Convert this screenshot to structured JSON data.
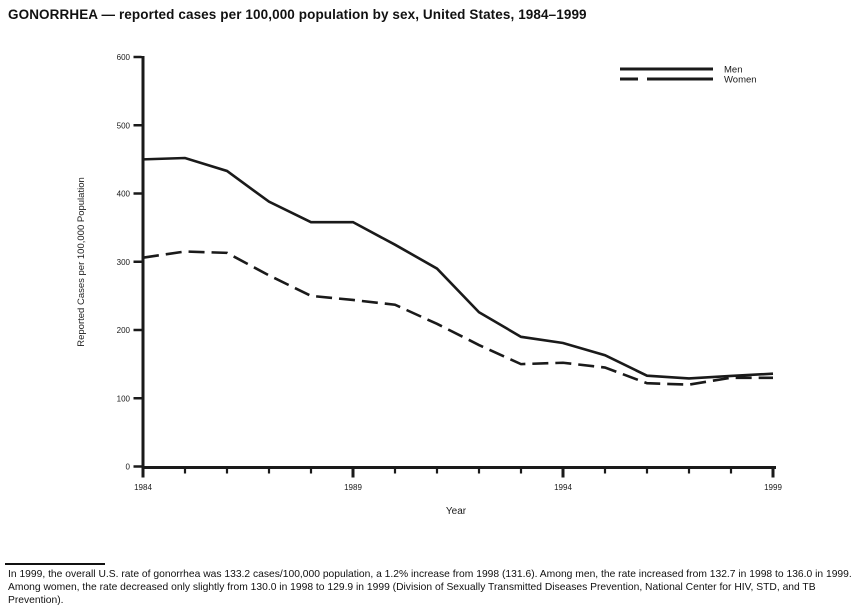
{
  "title": "GONORRHEA — reported cases per 100,000 population by sex, United States, 1984–1999",
  "footnote": "In 1999, the overall U.S. rate of gonorrhea was 133.2 cases/100,000 population, a 1.2% increase from 1998 (131.6). Among men, the rate increased from 132.7 in 1998 to 136.0 in 1999. Among women, the rate decreased only slightly from 130.0 in 1998 to 129.9 in 1999 (Division of Sexually Transmitted Diseases Prevention, National Center for HIV, STD, and TB Prevention).",
  "chart_data": {
    "type": "line",
    "x": [
      1984,
      1985,
      1986,
      1987,
      1988,
      1989,
      1990,
      1991,
      1992,
      1993,
      1994,
      1995,
      1996,
      1997,
      1998,
      1999
    ],
    "series": [
      {
        "name": "Men",
        "style": "solid",
        "values": [
          450,
          452,
          433,
          388,
          358,
          358,
          325,
          290,
          226,
          190,
          181,
          163,
          133,
          129,
          132.7,
          136.0
        ]
      },
      {
        "name": "Women",
        "style": "dashed",
        "values": [
          306,
          315,
          313,
          280,
          250,
          244,
          237,
          209,
          178,
          150,
          152,
          145,
          122,
          120,
          130.0,
          129.9
        ]
      }
    ],
    "xlabel": "Year",
    "ylabel": "Reported Cases per 100,000 Population",
    "xlim": [
      1984,
      1999
    ],
    "ylim": [
      0,
      600
    ],
    "yticks": [
      0,
      100,
      200,
      300,
      400,
      500,
      600
    ],
    "xticks_labeled": [
      1984,
      1989,
      1994,
      1999
    ],
    "legend_position": "top-right",
    "grid": false,
    "line_color": "#1a1a1a"
  }
}
